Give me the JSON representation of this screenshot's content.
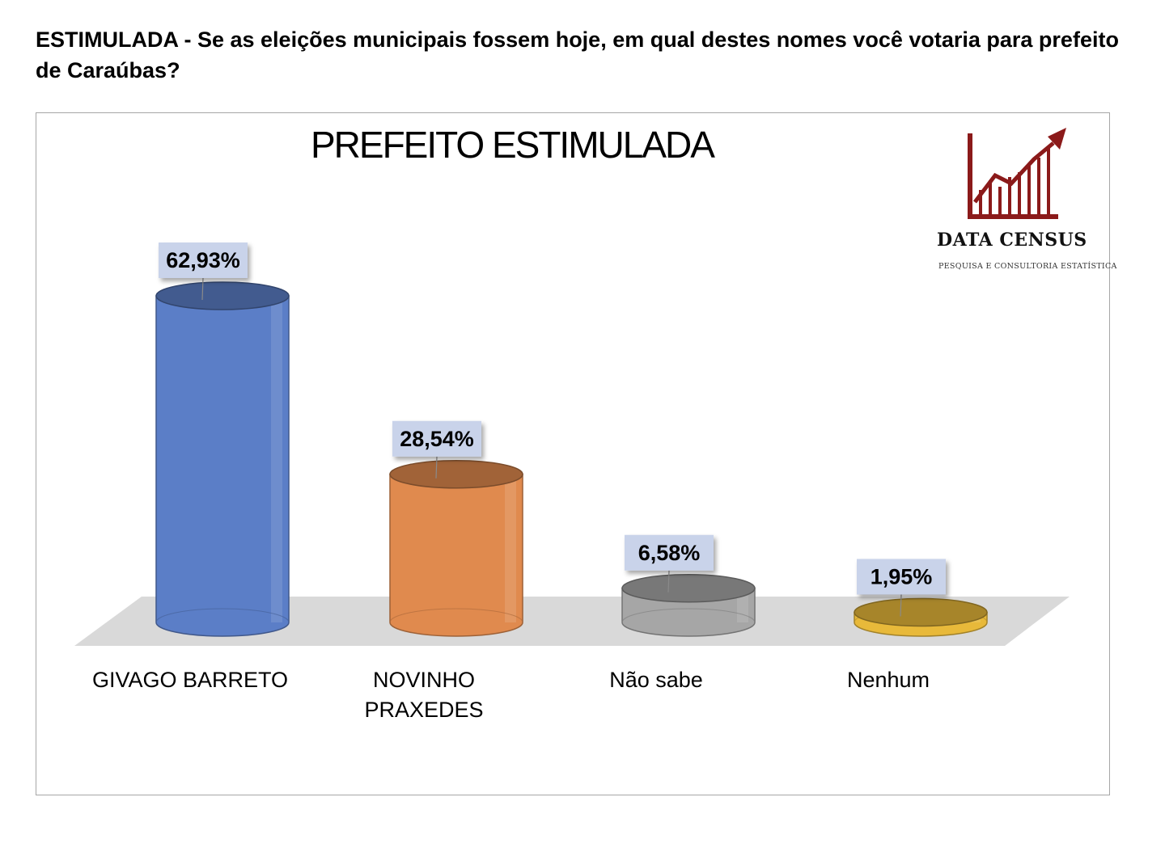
{
  "question": "ESTIMULADA - Se as eleições municipais fossem hoje, em qual destes nomes você votaria para prefeito de Caraúbas?",
  "logo": {
    "name": "DATA CENSUS",
    "tagline": "PESQUISA E CONSULTORIA ESTATÍSTICA",
    "icon": "bar-chart-rising-arrow-icon",
    "color": "#8b1a1a"
  },
  "chart_data": {
    "type": "bar",
    "style": "3d-cylinder",
    "title": "PREFEITO ESTIMULADA",
    "categories": [
      [
        "GIVAGO BARRETO"
      ],
      [
        "NOVINHO",
        "PRAXEDES"
      ],
      [
        "Não sabe"
      ],
      [
        "Nenhum"
      ]
    ],
    "values": [
      62.93,
      28.54,
      6.58,
      1.95
    ],
    "value_labels": [
      "62,93%",
      "28,54%",
      "6,58%",
      "1,95%"
    ],
    "colors": [
      "#5b7ec7",
      "#e08a4e",
      "#a6a6a6",
      "#e8b93a"
    ],
    "unit": "%",
    "ylim": [
      0,
      70
    ],
    "grid": false,
    "legend": "none"
  }
}
